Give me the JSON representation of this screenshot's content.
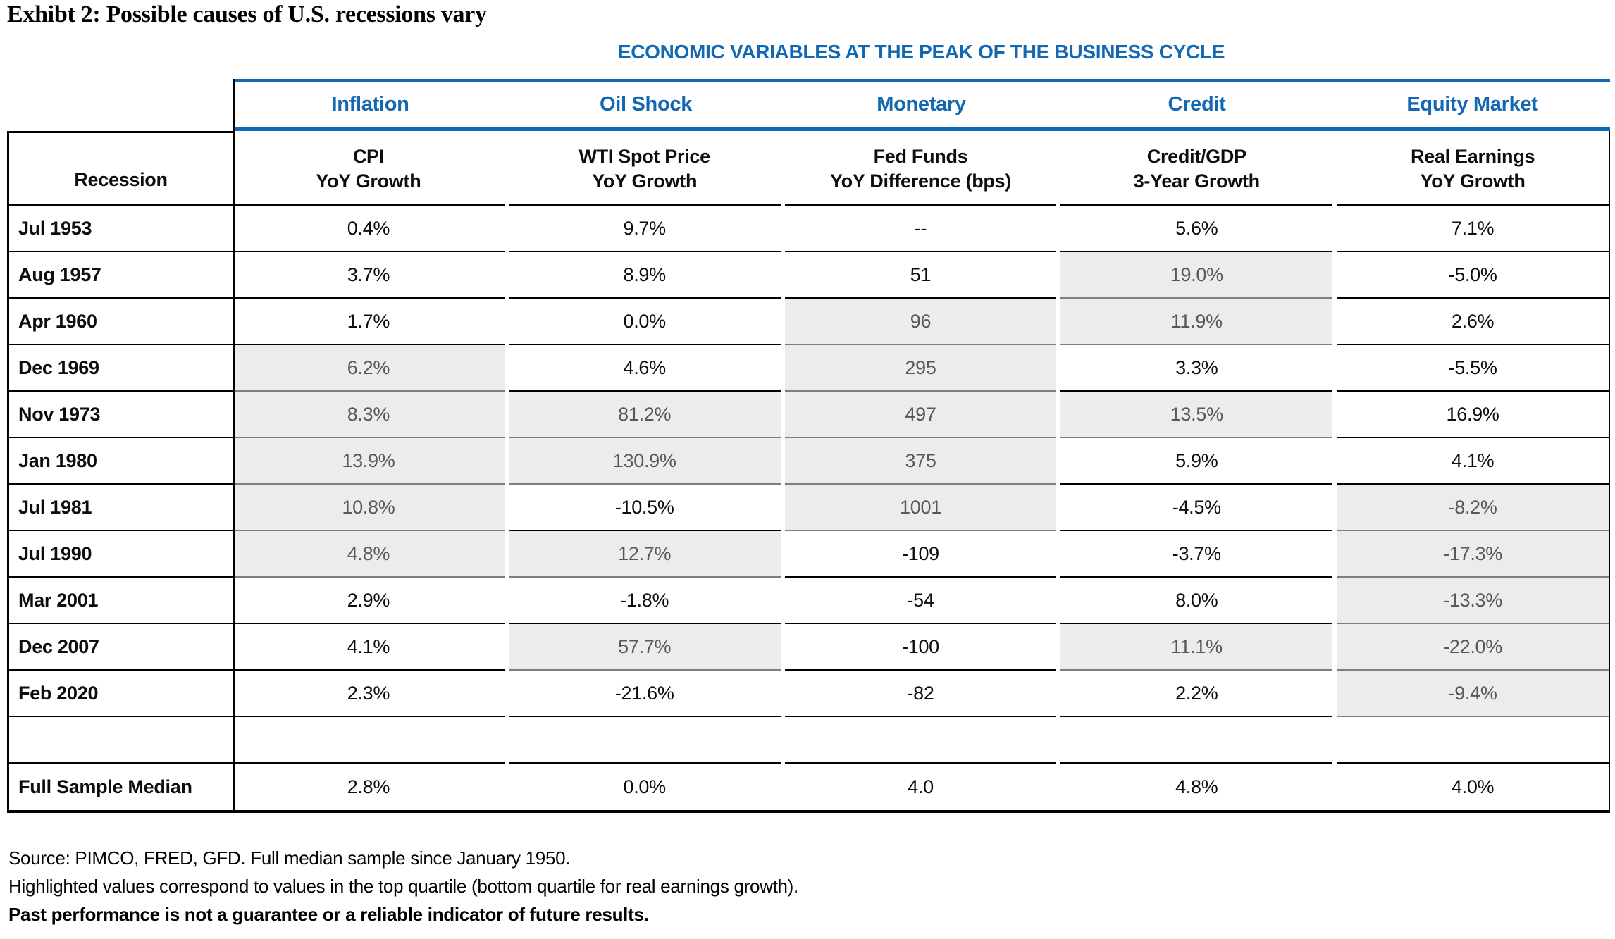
{
  "title": "Exhibt 2: Possible causes of U.S. recessions vary",
  "table": {
    "band_title": "ECONOMIC VARIABLES AT THE PEAK OF THE BUSINESS CYCLE",
    "accent_color": "#1268b3",
    "highlight_color": "#ececec",
    "groups": [
      "Inflation",
      "Oil Shock",
      "Monetary",
      "Credit",
      "Equity Market"
    ],
    "row_header": "Recession",
    "col_headers": [
      {
        "line1": "CPI",
        "line2": "YoY Growth"
      },
      {
        "line1": "WTI Spot Price",
        "line2": "YoY Growth"
      },
      {
        "line1": "Fed Funds",
        "line2": "YoY Difference (bps)"
      },
      {
        "line1": "Credit/GDP",
        "line2": "3-Year Growth"
      },
      {
        "line1": "Real Earnings",
        "line2": "YoY Growth"
      }
    ],
    "rows": [
      {
        "label": "Jul 1953",
        "values": [
          "0.4%",
          "9.7%",
          "--",
          "5.6%",
          "7.1%"
        ],
        "hl": [
          0,
          0,
          0,
          0,
          0
        ]
      },
      {
        "label": "Aug 1957",
        "values": [
          "3.7%",
          "8.9%",
          "51",
          "19.0%",
          "-5.0%"
        ],
        "hl": [
          0,
          0,
          0,
          1,
          0
        ]
      },
      {
        "label": "Apr 1960",
        "values": [
          "1.7%",
          "0.0%",
          "96",
          "11.9%",
          "2.6%"
        ],
        "hl": [
          0,
          0,
          1,
          1,
          0
        ]
      },
      {
        "label": "Dec 1969",
        "values": [
          "6.2%",
          "4.6%",
          "295",
          "3.3%",
          "-5.5%"
        ],
        "hl": [
          1,
          0,
          1,
          0,
          0
        ]
      },
      {
        "label": "Nov 1973",
        "values": [
          "8.3%",
          "81.2%",
          "497",
          "13.5%",
          "16.9%"
        ],
        "hl": [
          1,
          1,
          1,
          1,
          0
        ]
      },
      {
        "label": "Jan 1980",
        "values": [
          "13.9%",
          "130.9%",
          "375",
          "5.9%",
          "4.1%"
        ],
        "hl": [
          1,
          1,
          1,
          0,
          0
        ]
      },
      {
        "label": "Jul 1981",
        "values": [
          "10.8%",
          "-10.5%",
          "1001",
          "-4.5%",
          "-8.2%"
        ],
        "hl": [
          1,
          0,
          1,
          0,
          1
        ]
      },
      {
        "label": "Jul 1990",
        "values": [
          "4.8%",
          "12.7%",
          "-109",
          "-3.7%",
          "-17.3%"
        ],
        "hl": [
          1,
          1,
          0,
          0,
          1
        ]
      },
      {
        "label": "Mar 2001",
        "values": [
          "2.9%",
          "-1.8%",
          "-54",
          "8.0%",
          "-13.3%"
        ],
        "hl": [
          0,
          0,
          0,
          0,
          1
        ]
      },
      {
        "label": "Dec 2007",
        "values": [
          "4.1%",
          "57.7%",
          "-100",
          "11.1%",
          "-22.0%"
        ],
        "hl": [
          0,
          1,
          0,
          1,
          1
        ]
      },
      {
        "label": "Feb 2020",
        "values": [
          "2.3%",
          "-21.6%",
          "-82",
          "2.2%",
          "-9.4%"
        ],
        "hl": [
          0,
          0,
          0,
          0,
          1
        ]
      },
      {
        "type": "spacer",
        "label": "",
        "values": [
          "",
          "",
          "",
          "",
          ""
        ],
        "hl": [
          0,
          0,
          0,
          0,
          0
        ]
      },
      {
        "type": "median",
        "label": "Full Sample Median",
        "values": [
          "2.8%",
          "0.0%",
          "4.0",
          "4.8%",
          "4.0%"
        ],
        "hl": [
          0,
          0,
          0,
          0,
          0
        ]
      }
    ]
  },
  "footnotes": [
    {
      "text": "Source: PIMCO, FRED, GFD. Full median sample since January 1950.",
      "bold": false
    },
    {
      "text": "Highlighted values correspond to values in the top quartile (bottom quartile for real earnings growth).",
      "bold": false
    },
    {
      "text": "Past performance is not a guarantee or a reliable indicator of future results.",
      "bold": true
    }
  ]
}
